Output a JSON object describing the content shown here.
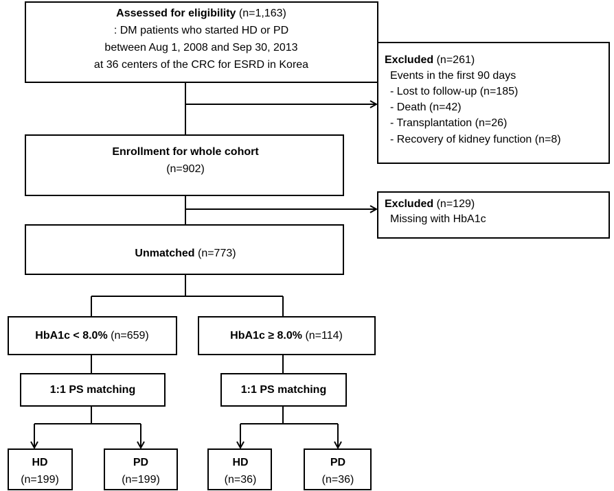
{
  "nodes": [
    {
      "title": "Assessed for eligibility",
      "count": "(n=1,163)",
      "lines": [
        ": DM patients who started HD or PD",
        "between Aug 1, 2008 and Sep 30, 2013",
        "at 36 centers of the CRC for ESRD in Korea"
      ]
    },
    {
      "title": "Excluded",
      "count": "(n=261)",
      "lines": [
        "Events in the first 90 days",
        "- Lost to follow-up  (n=185)",
        "- Death (n=42)",
        "- Transplantation (n=26)",
        "- Recovery of kidney function (n=8)"
      ]
    },
    {
      "title": "Enrollment for whole cohort",
      "count": "(n=902)"
    },
    {
      "title": "Excluded",
      "count": "(n=129)",
      "lines": [
        "Missing with HbA1c"
      ]
    },
    {
      "title": "Unmatched",
      "count": "(n=773)"
    },
    {
      "title": "HbA1c < 8.0%",
      "count": "(n=659)"
    },
    {
      "title": "HbA1c ≥ 8.0%",
      "count": "(n=114)"
    },
    {
      "title": "1:1 PS matching"
    },
    {
      "title": "1:1 PS matching"
    },
    {
      "title": "HD",
      "count": "(n=199)"
    },
    {
      "title": "PD",
      "count": "(n=199)"
    },
    {
      "title": "HD",
      "count": "(n=36)"
    },
    {
      "title": "PD",
      "count": "(n=36)"
    }
  ]
}
